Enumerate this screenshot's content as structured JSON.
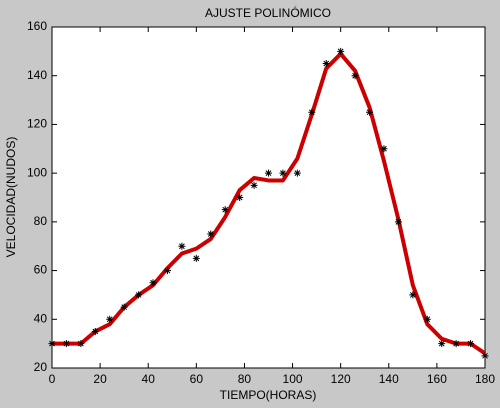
{
  "chart_data": {
    "type": "line",
    "title": "AJUSTE POLINÓMICO",
    "x_label": "TIEMPO(HORAS)",
    "y_label": "VELOCIDAD(NUDOS)",
    "x": [
      0,
      6,
      12,
      18,
      24,
      30,
      36,
      42,
      48,
      54,
      60,
      66,
      72,
      78,
      84,
      90,
      96,
      102,
      108,
      114,
      120,
      126,
      132,
      138,
      144,
      150,
      156,
      162,
      168,
      174,
      180
    ],
    "series": [
      {
        "color": "#cc0000",
        "mode": "line",
        "values": [
          30,
          30,
          30,
          35,
          38,
          45,
          50,
          54,
          61,
          67,
          69,
          73,
          82,
          93,
          98,
          97,
          97,
          106,
          124,
          143,
          149,
          142,
          127,
          105,
          81,
          54,
          38,
          32,
          30,
          30,
          26
        ]
      },
      {
        "color": "#000000",
        "mode": "markers",
        "values": [
          30,
          30,
          30,
          35,
          40,
          45,
          50,
          55,
          60,
          70,
          65,
          75,
          85,
          90,
          95,
          100,
          100,
          100,
          125,
          145,
          150,
          140,
          125,
          110,
          80,
          50,
          40,
          30,
          30,
          30,
          25
        ]
      }
    ],
    "xlim": [
      0,
      180
    ],
    "xticks": [
      0,
      20,
      40,
      60,
      80,
      100,
      120,
      140,
      160,
      180
    ],
    "ylim": [
      20,
      160
    ],
    "yticks": [
      20,
      40,
      60,
      80,
      100,
      120,
      140,
      160
    ],
    "grid": false
  }
}
